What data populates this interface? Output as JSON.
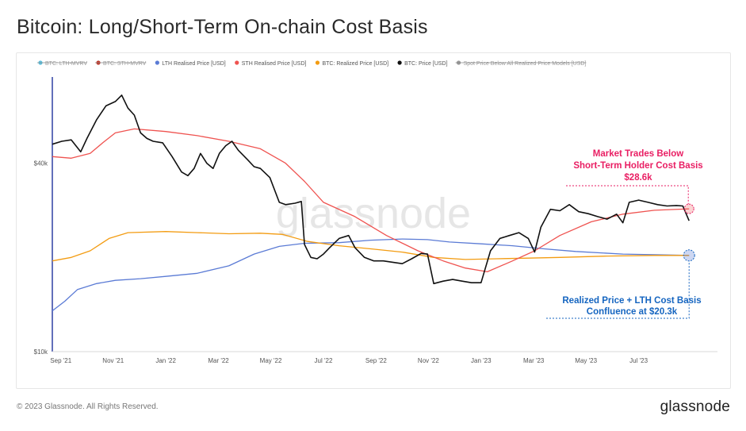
{
  "title": "Bitcoin: Long/Short-Term On-chain Cost Basis",
  "footer": {
    "copyright": "© 2023 Glassnode. All Rights Reserved.",
    "brand": "glassnode"
  },
  "watermark": "glassnode",
  "chart_data": {
    "type": "line",
    "yscale": "log",
    "ylim": [
      10000,
      72000
    ],
    "y_ticks": [
      {
        "value": 40000,
        "label": "$40k"
      },
      {
        "value": 10000,
        "label": "$10k"
      }
    ],
    "x_ticks": [
      "Sep '21",
      "Nov '21",
      "Jan '22",
      "Mar '22",
      "May '22",
      "Jul '22",
      "Sep '22",
      "Nov '22",
      "Jan '23",
      "Mar '23",
      "May '23",
      "Jul '23"
    ],
    "x_tick_months": [
      2021.667,
      2021.833,
      2022.0,
      2022.167,
      2022.333,
      2022.5,
      2022.667,
      2022.833,
      2023.0,
      2023.167,
      2023.333,
      2023.5
    ],
    "xlim": [
      2021.64,
      2023.75
    ],
    "legend_position": "top",
    "legend": [
      {
        "label": "BTC: LTH-MVRV",
        "color": "#5bc0de",
        "hidden": true
      },
      {
        "label": "BTC: STH-MVRV",
        "color": "#c0392b",
        "hidden": true
      },
      {
        "label": "LTH Realised Price [USD]",
        "color": "#5b7bd5",
        "hidden": false
      },
      {
        "label": "STH Realised Price [USD]",
        "color": "#ef5350",
        "hidden": false
      },
      {
        "label": "BTC: Realized Price [USD]",
        "color": "#f39c12",
        "hidden": false
      },
      {
        "label": "BTC: Price [USD]",
        "color": "#111111",
        "hidden": false
      },
      {
        "label": "Spot Price Below All Realized Price Models [USD]",
        "color": "#999999",
        "hidden": true
      }
    ],
    "series": [
      {
        "name": "BTC: Price [USD]",
        "color": "#111111",
        "points": [
          [
            2021.64,
            46000
          ],
          [
            2021.67,
            47000
          ],
          [
            2021.7,
            47500
          ],
          [
            2021.73,
            43500
          ],
          [
            2021.75,
            48000
          ],
          [
            2021.78,
            55000
          ],
          [
            2021.81,
            61000
          ],
          [
            2021.84,
            63000
          ],
          [
            2021.86,
            66000
          ],
          [
            2021.88,
            60000
          ],
          [
            2021.9,
            57000
          ],
          [
            2021.92,
            50000
          ],
          [
            2021.94,
            48000
          ],
          [
            2021.96,
            47000
          ],
          [
            2021.99,
            46500
          ],
          [
            2022.02,
            42000
          ],
          [
            2022.05,
            37500
          ],
          [
            2022.07,
            36500
          ],
          [
            2022.09,
            38500
          ],
          [
            2022.11,
            43000
          ],
          [
            2022.13,
            40000
          ],
          [
            2022.15,
            38500
          ],
          [
            2022.17,
            43000
          ],
          [
            2022.19,
            45500
          ],
          [
            2022.21,
            47000
          ],
          [
            2022.23,
            44000
          ],
          [
            2022.26,
            41000
          ],
          [
            2022.28,
            39000
          ],
          [
            2022.3,
            38500
          ],
          [
            2022.33,
            36000
          ],
          [
            2022.36,
            30000
          ],
          [
            2022.38,
            29500
          ],
          [
            2022.41,
            29800
          ],
          [
            2022.43,
            30200
          ],
          [
            2022.44,
            22000
          ],
          [
            2022.46,
            20000
          ],
          [
            2022.48,
            19800
          ],
          [
            2022.5,
            20500
          ],
          [
            2022.52,
            21500
          ],
          [
            2022.55,
            23000
          ],
          [
            2022.58,
            23500
          ],
          [
            2022.6,
            21500
          ],
          [
            2022.63,
            20000
          ],
          [
            2022.66,
            19500
          ],
          [
            2022.69,
            19500
          ],
          [
            2022.72,
            19300
          ],
          [
            2022.75,
            19100
          ],
          [
            2022.78,
            19800
          ],
          [
            2022.81,
            20600
          ],
          [
            2022.83,
            20500
          ],
          [
            2022.85,
            16500
          ],
          [
            2022.88,
            16800
          ],
          [
            2022.91,
            17000
          ],
          [
            2022.94,
            16800
          ],
          [
            2022.97,
            16600
          ],
          [
            2023.0,
            16600
          ],
          [
            2023.03,
            21000
          ],
          [
            2023.06,
            23000
          ],
          [
            2023.09,
            23500
          ],
          [
            2023.12,
            24000
          ],
          [
            2023.15,
            23000
          ],
          [
            2023.17,
            20800
          ],
          [
            2023.19,
            25000
          ],
          [
            2023.22,
            28500
          ],
          [
            2023.25,
            28200
          ],
          [
            2023.28,
            29500
          ],
          [
            2023.31,
            28000
          ],
          [
            2023.34,
            27600
          ],
          [
            2023.37,
            27000
          ],
          [
            2023.4,
            26500
          ],
          [
            2023.43,
            27500
          ],
          [
            2023.45,
            25800
          ],
          [
            2023.47,
            30000
          ],
          [
            2023.5,
            30500
          ],
          [
            2023.53,
            30000
          ],
          [
            2023.56,
            29500
          ],
          [
            2023.59,
            29200
          ],
          [
            2023.62,
            29300
          ],
          [
            2023.64,
            29200
          ],
          [
            2023.66,
            26200
          ]
        ]
      },
      {
        "name": "STH Realised Price [USD]",
        "color": "#ef5350",
        "points": [
          [
            2021.64,
            42000
          ],
          [
            2021.7,
            41500
          ],
          [
            2021.76,
            43000
          ],
          [
            2021.8,
            46500
          ],
          [
            2021.84,
            50000
          ],
          [
            2021.9,
            51500
          ],
          [
            2022.0,
            50500
          ],
          [
            2022.1,
            49000
          ],
          [
            2022.2,
            47000
          ],
          [
            2022.3,
            44500
          ],
          [
            2022.38,
            40000
          ],
          [
            2022.44,
            35000
          ],
          [
            2022.5,
            30000
          ],
          [
            2022.6,
            27000
          ],
          [
            2022.7,
            23500
          ],
          [
            2022.8,
            21000
          ],
          [
            2022.88,
            19500
          ],
          [
            2022.95,
            18500
          ],
          [
            2023.02,
            18000
          ],
          [
            2023.1,
            19500
          ],
          [
            2023.17,
            21000
          ],
          [
            2023.25,
            23500
          ],
          [
            2023.35,
            26000
          ],
          [
            2023.45,
            27500
          ],
          [
            2023.55,
            28300
          ],
          [
            2023.66,
            28600
          ]
        ]
      },
      {
        "name": "BTC: Realized Price [USD]",
        "color": "#f39c12",
        "points": [
          [
            2021.64,
            19500
          ],
          [
            2021.7,
            20000
          ],
          [
            2021.76,
            21000
          ],
          [
            2021.82,
            23000
          ],
          [
            2021.88,
            24000
          ],
          [
            2022.0,
            24200
          ],
          [
            2022.1,
            24000
          ],
          [
            2022.2,
            23800
          ],
          [
            2022.3,
            23900
          ],
          [
            2022.37,
            23700
          ],
          [
            2022.45,
            22500
          ],
          [
            2022.55,
            21800
          ],
          [
            2022.65,
            21300
          ],
          [
            2022.75,
            20800
          ],
          [
            2022.85,
            20000
          ],
          [
            2022.95,
            19700
          ],
          [
            2023.05,
            19800
          ],
          [
            2023.15,
            19900
          ],
          [
            2023.25,
            20000
          ],
          [
            2023.4,
            20200
          ],
          [
            2023.55,
            20300
          ],
          [
            2023.66,
            20300
          ]
        ]
      },
      {
        "name": "LTH Realised Price [USD]",
        "color": "#5b7bd5",
        "points": [
          [
            2021.64,
            13500
          ],
          [
            2021.68,
            14500
          ],
          [
            2021.72,
            15800
          ],
          [
            2021.78,
            16500
          ],
          [
            2021.84,
            16900
          ],
          [
            2021.92,
            17100
          ],
          [
            2022.0,
            17400
          ],
          [
            2022.1,
            17800
          ],
          [
            2022.2,
            18800
          ],
          [
            2022.28,
            20500
          ],
          [
            2022.36,
            21700
          ],
          [
            2022.44,
            22200
          ],
          [
            2022.55,
            22300
          ],
          [
            2022.65,
            22700
          ],
          [
            2022.75,
            22900
          ],
          [
            2022.83,
            22800
          ],
          [
            2022.9,
            22400
          ],
          [
            2023.0,
            22100
          ],
          [
            2023.1,
            21800
          ],
          [
            2023.2,
            21300
          ],
          [
            2023.3,
            20900
          ],
          [
            2023.45,
            20500
          ],
          [
            2023.55,
            20400
          ],
          [
            2023.66,
            20300
          ]
        ]
      }
    ],
    "annotations": [
      {
        "lines": [
          "Market Trades Below",
          "Short-Term Holder Cost Basis",
          "$28.6k"
        ],
        "color": "#e91e63",
        "anchor_x": 2023.66,
        "anchor_y": 28600
      },
      {
        "lines": [
          "Realized Price + LTH Cost Basis",
          "Confluence at $20.3k"
        ],
        "color": "#1565c0",
        "anchor_x": 2023.66,
        "anchor_y": 20300
      }
    ]
  }
}
